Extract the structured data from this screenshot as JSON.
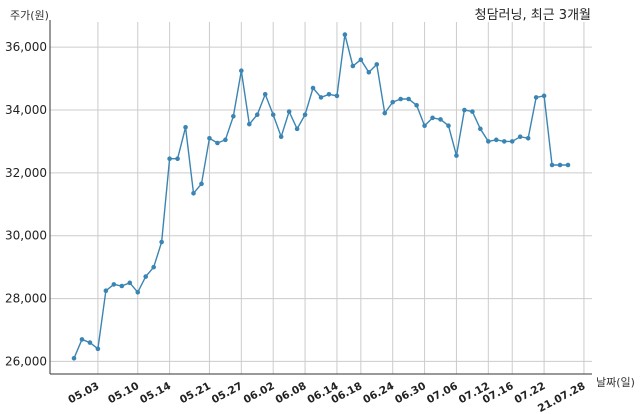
{
  "chart_data": {
    "type": "line",
    "title": "청담러닝, 최근 3개월",
    "xlabel": "날짜(일)",
    "ylabel": "주가(원)",
    "ylim": [
      25600,
      36800
    ],
    "yticks": [
      "26,000",
      "28,000",
      "30,000",
      "32,000",
      "34,000",
      "36,000"
    ],
    "ytick_values": [
      26000,
      28000,
      30000,
      32000,
      34000,
      36000
    ],
    "x_tick_labels": [
      "05.03",
      "05.10",
      "05.14",
      "05.21",
      "05.27",
      "06.02",
      "06.08",
      "06.14",
      "06.18",
      "06.24",
      "06.30",
      "07.06",
      "07.12",
      "07.16",
      "07.22",
      "21.07.28"
    ],
    "x_tick_index": [
      3,
      8,
      12,
      17,
      21,
      25,
      29,
      33,
      36,
      40,
      44,
      48,
      52,
      55,
      59,
      64
    ],
    "grid": true,
    "line_color": "#3a85b3",
    "series": [
      {
        "values": [
          26100,
          26700,
          26600,
          26400,
          28250,
          28450,
          28400,
          28500,
          28200,
          28700,
          29000,
          29800,
          32450,
          32450,
          33450,
          31350,
          31650,
          33100,
          32950,
          33050,
          33800,
          35250,
          33550,
          33850,
          34500,
          33850,
          33150,
          33950,
          33400,
          33850,
          34700,
          34400,
          34500,
          34450,
          36400,
          35400,
          35600,
          35200,
          35450,
          33900,
          34250,
          34350,
          34350,
          34150,
          33500,
          33750,
          33700,
          33500,
          32550,
          34000,
          33950,
          33400,
          33000,
          33050,
          33000,
          33000,
          33150,
          33100,
          34400,
          34450,
          32250,
          32250,
          32250
        ]
      }
    ]
  }
}
